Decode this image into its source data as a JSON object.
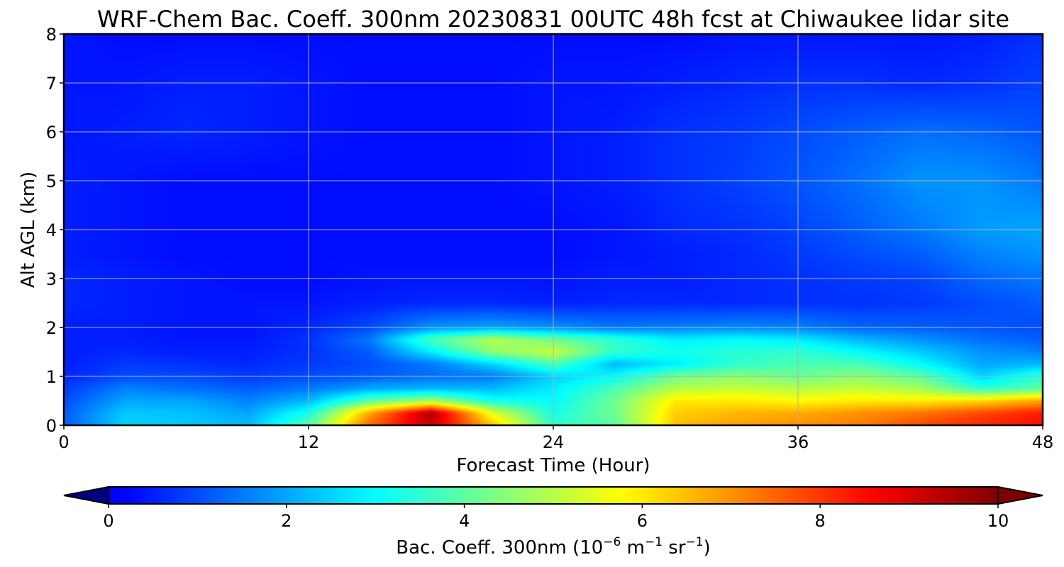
{
  "chart_data": {
    "type": "heatmap",
    "title": "WRF-Chem Bac. Coeff. 300nm  20230831 00UTC 48h fcst at Chiwaukee lidar site",
    "xlabel": "Forecast Time (Hour)",
    "ylabel": "Alt AGL (km)",
    "xlim": [
      0,
      48
    ],
    "ylim": [
      0,
      8
    ],
    "x_ticks": [
      "0",
      "12",
      "24",
      "36",
      "48"
    ],
    "y_ticks": [
      "0",
      "1",
      "2",
      "3",
      "4",
      "5",
      "6",
      "7",
      "8"
    ],
    "grid": true,
    "colormap": "jet",
    "colorbar": {
      "label": "Bac. Coeff. 300nm  (10",
      "unit_exp1": "−6",
      "unit_mid": " m",
      "unit_exp2": "−1",
      "unit_mid2": " sr",
      "unit_exp3": "−1",
      "unit_end": ")",
      "range": [
        0,
        10
      ],
      "ticks": [
        "0",
        "2",
        "4",
        "6",
        "8",
        "10"
      ],
      "extend": "both",
      "orientation": "horizontal"
    },
    "x": [
      0,
      3,
      6,
      9,
      12,
      15,
      18,
      21,
      24,
      27,
      30,
      33,
      36,
      39,
      42,
      45,
      48
    ],
    "y": [
      0,
      0.25,
      0.5,
      0.75,
      1.0,
      1.25,
      1.5,
      1.75,
      2.0,
      2.5,
      3.0,
      3.5,
      4.0,
      5.0,
      6.0,
      7.0,
      8.0
    ],
    "values": [
      [
        1.2,
        2.5,
        2.4,
        2.2,
        4.0,
        7.5,
        9.2,
        6.5,
        3.5,
        4.0,
        6.5,
        6.8,
        7.0,
        7.2,
        7.8,
        8.2,
        8.5
      ],
      [
        1.2,
        2.4,
        2.3,
        2.0,
        3.2,
        6.8,
        9.5,
        5.5,
        3.2,
        4.2,
        6.3,
        6.6,
        6.7,
        7.0,
        7.3,
        7.8,
        8.3
      ],
      [
        1.0,
        2.0,
        2.0,
        1.6,
        2.2,
        4.0,
        4.8,
        3.2,
        3.0,
        4.2,
        6.0,
        6.0,
        5.8,
        6.0,
        6.0,
        6.2,
        6.8
      ],
      [
        0.8,
        1.6,
        1.4,
        1.2,
        1.5,
        2.0,
        2.2,
        2.2,
        2.8,
        3.8,
        5.0,
        5.2,
        5.0,
        5.2,
        4.8,
        3.5,
        4.0
      ],
      [
        0.6,
        1.0,
        1.0,
        0.8,
        1.0,
        1.2,
        1.4,
        1.5,
        2.5,
        3.0,
        4.2,
        4.5,
        4.2,
        4.5,
        4.0,
        2.5,
        3.5
      ],
      [
        0.5,
        0.8,
        0.7,
        0.6,
        0.8,
        1.0,
        1.5,
        2.5,
        3.8,
        2.2,
        2.8,
        3.5,
        3.8,
        3.8,
        3.0,
        2.0,
        2.2
      ],
      [
        0.5,
        0.6,
        0.5,
        0.5,
        0.7,
        1.2,
        2.8,
        4.5,
        5.2,
        3.5,
        3.2,
        3.4,
        3.5,
        3.0,
        2.4,
        1.8,
        1.6
      ],
      [
        0.5,
        0.5,
        0.4,
        0.4,
        0.7,
        1.5,
        3.8,
        5.0,
        4.2,
        3.5,
        2.8,
        3.0,
        2.8,
        2.2,
        1.8,
        1.4,
        1.2
      ],
      [
        0.5,
        0.5,
        0.4,
        0.4,
        0.6,
        1.0,
        1.8,
        2.0,
        1.8,
        1.5,
        1.6,
        1.7,
        1.6,
        1.3,
        1.2,
        1.1,
        1.0
      ],
      [
        0.6,
        0.5,
        0.4,
        0.4,
        0.4,
        0.5,
        0.6,
        0.6,
        0.5,
        0.6,
        0.6,
        0.6,
        0.7,
        0.7,
        0.8,
        1.0,
        1.2
      ],
      [
        0.6,
        0.5,
        0.4,
        0.3,
        0.3,
        0.4,
        0.4,
        0.4,
        0.4,
        0.5,
        0.5,
        0.6,
        0.7,
        0.8,
        0.9,
        1.3,
        1.5
      ],
      [
        0.5,
        0.4,
        0.3,
        0.3,
        0.3,
        0.3,
        0.3,
        0.3,
        0.3,
        0.4,
        0.5,
        0.6,
        0.8,
        1.0,
        1.2,
        1.6,
        1.8
      ],
      [
        0.5,
        0.4,
        0.3,
        0.3,
        0.3,
        0.3,
        0.3,
        0.3,
        0.3,
        0.4,
        0.6,
        0.7,
        0.9,
        1.2,
        1.5,
        1.9,
        2.0
      ],
      [
        0.5,
        0.4,
        0.3,
        0.3,
        0.3,
        0.3,
        0.3,
        0.3,
        0.4,
        0.5,
        0.7,
        0.9,
        1.1,
        1.4,
        1.8,
        1.8,
        1.5
      ],
      [
        0.4,
        0.5,
        0.6,
        0.5,
        0.4,
        0.3,
        0.3,
        0.3,
        0.4,
        0.5,
        0.7,
        0.8,
        1.0,
        1.2,
        1.4,
        1.3,
        1.1
      ],
      [
        0.4,
        0.4,
        0.5,
        0.5,
        0.4,
        0.3,
        0.3,
        0.3,
        0.4,
        0.4,
        0.5,
        0.6,
        0.7,
        0.7,
        0.6,
        0.7,
        0.9
      ],
      [
        0.4,
        0.3,
        0.3,
        0.3,
        0.3,
        0.3,
        0.3,
        0.3,
        0.3,
        0.3,
        0.3,
        0.4,
        0.4,
        0.4,
        0.4,
        0.5,
        0.7
      ]
    ]
  }
}
